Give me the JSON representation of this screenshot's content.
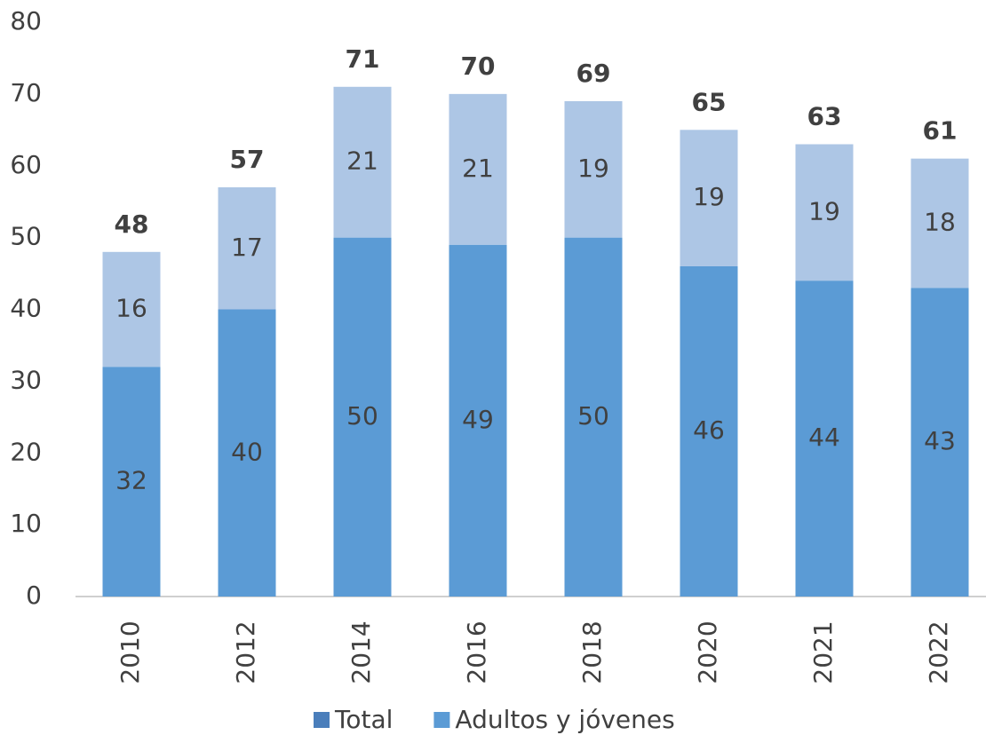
{
  "chart_data": {
    "type": "bar",
    "stacked": true,
    "categories": [
      "2010",
      "2012",
      "2014",
      "2016",
      "2018",
      "2020",
      "2021",
      "2022"
    ],
    "series": [
      {
        "name": "Total",
        "color": "#4a7ebb",
        "values": [
          48,
          57,
          71,
          70,
          69,
          65,
          63,
          61
        ]
      },
      {
        "name": "Adultos y jóvenes",
        "color": "#5b9bd5",
        "values": [
          32,
          40,
          50,
          49,
          50,
          46,
          44,
          43
        ]
      },
      {
        "color": "#adc6e5",
        "values": [
          16,
          17,
          21,
          21,
          19,
          19,
          19,
          18
        ]
      }
    ],
    "ylim": [
      0,
      80
    ],
    "yticks": [
      0,
      10,
      20,
      30,
      40,
      50,
      60,
      70,
      80
    ],
    "grid": false,
    "legend": "bottom"
  }
}
